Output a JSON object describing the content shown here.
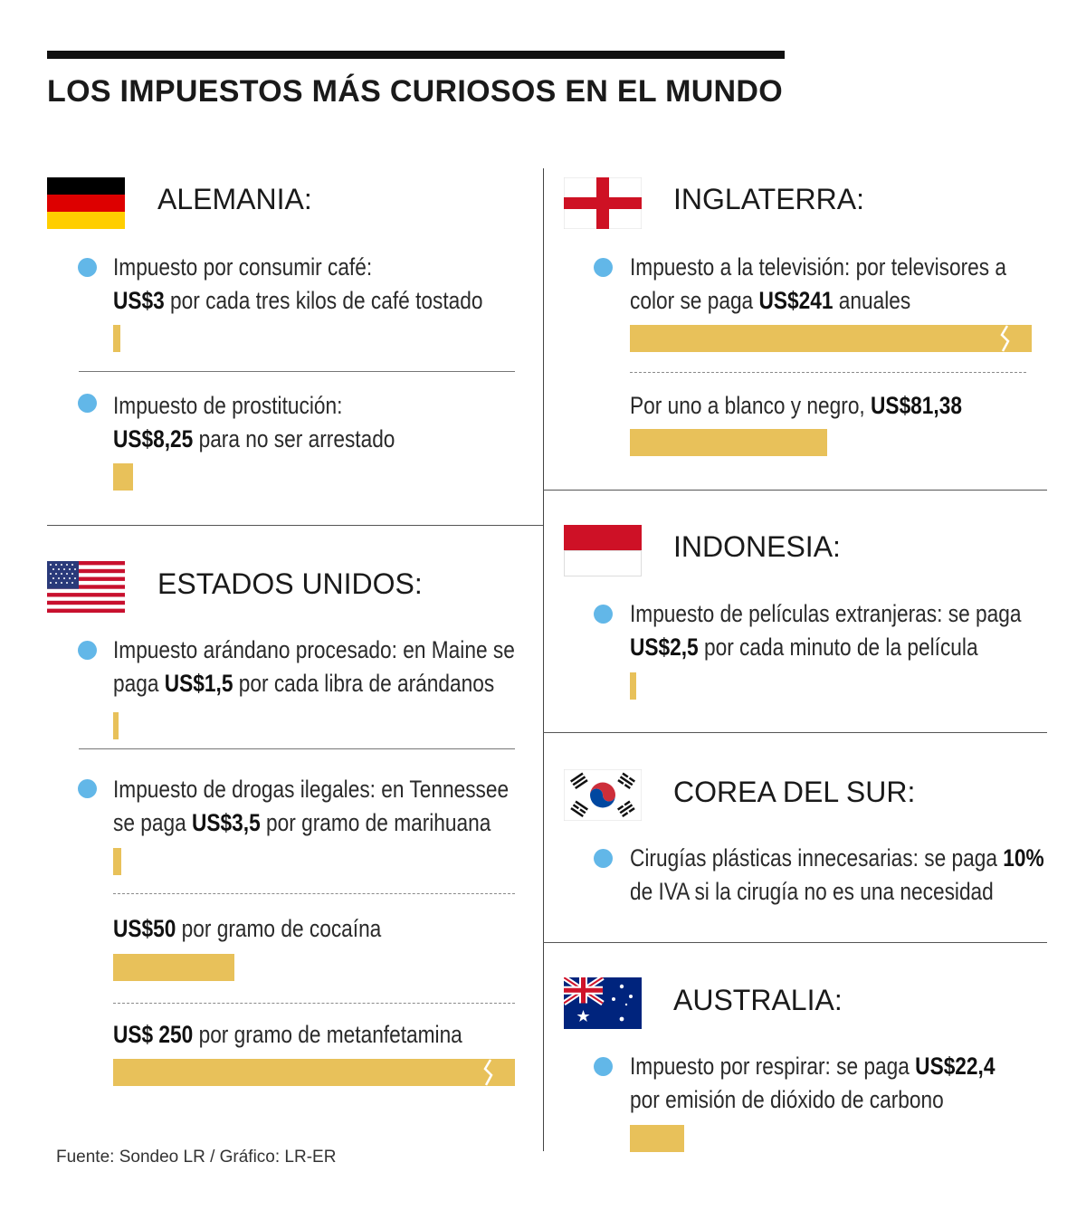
{
  "title": "LOS IMPUESTOS MÁS CURIOSOS EN EL MUNDO",
  "source": "Fuente: Sondeo LR / Gráfico: LR-ER",
  "colors": {
    "bar": "#e8c15a",
    "bullet": "#62b7e8",
    "text": "#1a1a1a"
  },
  "countries": [
    {
      "name": "ALEMANIA:",
      "flag": "germany-flag",
      "items": [
        {
          "pre": "Impuesto por consumir café:",
          "amount": "US$3",
          "post": "por cada tres kilos de café tostado"
        },
        {
          "pre": "Impuesto de prostitución:",
          "amount": "US$8,25",
          "post": "para no ser arrestado"
        }
      ]
    },
    {
      "name": "ESTADOS UNIDOS:",
      "flag": "usa-flag",
      "items": [
        {
          "line1": "Impuesto arándano procesado: en Maine se",
          "pre": "paga",
          "amount": "US$1,5",
          "post": "por cada libra de arándanos"
        },
        {
          "line1": "Impuesto de drogas ilegales: en Tennessee",
          "pre": "se paga",
          "amount": "US$3,5",
          "post": "por gramo de marihuana"
        },
        {
          "amount": "US$50",
          "post": "por gramo de cocaína"
        },
        {
          "amount": "US$ 250",
          "post": "por gramo de metanfetamina"
        }
      ]
    },
    {
      "name": "INGLATERRA:",
      "flag": "england-flag",
      "items": [
        {
          "line1": "Impuesto a la televisión: por televisores a",
          "pre": "color se paga",
          "amount": "US$241",
          "post": "anuales"
        },
        {
          "pre": "Por uno a blanco y negro,",
          "amount": "US$81,38"
        }
      ]
    },
    {
      "name": "INDONESIA:",
      "flag": "indonesia-flag",
      "items": [
        {
          "line1": "Impuesto de películas extranjeras: se paga",
          "amount": "US$2,5",
          "post": "por cada minuto de la película"
        }
      ]
    },
    {
      "name": "COREA DEL SUR:",
      "flag": "south-korea-flag",
      "items": [
        {
          "pre": "Cirugías plásticas innecesarias: se paga",
          "amount": "10%",
          "line2": "de IVA si la cirugía no es una necesidad"
        }
      ]
    },
    {
      "name": "AUSTRALIA:",
      "flag": "australia-flag",
      "items": [
        {
          "pre": "Impuesto por respirar: se paga",
          "amount": "US$22,4",
          "line2": "por emisión de dióxido de carbono"
        }
      ]
    }
  ],
  "chart_data": {
    "type": "bar",
    "title": "LOS IMPUESTOS MÁS CURIOSOS EN EL MUNDO",
    "unit": "US$",
    "scale_note": "bars for US$241 and US$250 are drawn truncated (axis break)",
    "categories": [
      "Alemania: café",
      "Alemania: prostitución",
      "EE.UU.: arándanos",
      "EE.UU.: marihuana",
      "EE.UU.: cocaína",
      "EE.UU.: metanfetamina",
      "Inglaterra: TV color",
      "Inglaterra: TV blanco y negro",
      "Indonesia: películas",
      "Australia: respirar"
    ],
    "values": [
      3,
      8.25,
      1.5,
      3.5,
      50,
      250,
      241,
      81.38,
      2.5,
      22.4
    ],
    "truncated": [
      false,
      false,
      false,
      false,
      false,
      true,
      true,
      false,
      false,
      false
    ]
  }
}
